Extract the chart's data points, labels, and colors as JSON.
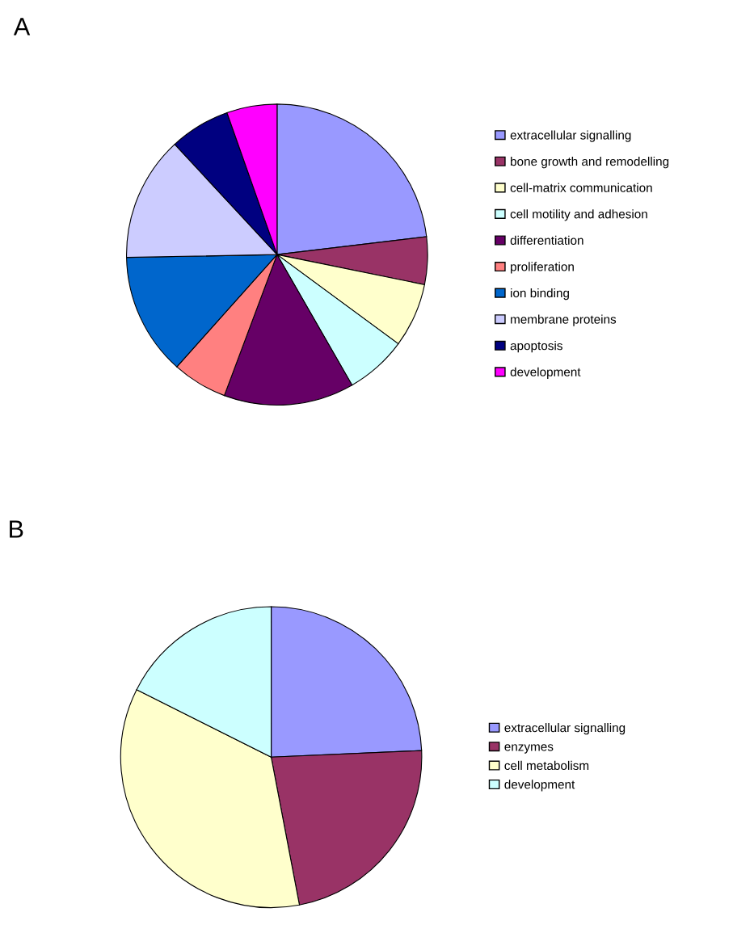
{
  "chart_data": [
    {
      "type": "pie",
      "title": "A",
      "categories": [
        "extracellular signalling",
        "bone growth and remodelling",
        "cell-matrix communication",
        "cell motility and adhesion",
        "differentiation",
        "proliferation",
        "ion binding",
        "membrane proteins",
        "apoptosis",
        "development"
      ],
      "values": [
        23.1,
        5.1,
        6.9,
        6.6,
        14.0,
        5.9,
        13.1,
        13.4,
        6.5,
        5.4
      ],
      "colors": [
        "#9999ff",
        "#993366",
        "#ffffcc",
        "#ccffff",
        "#660066",
        "#ff8080",
        "#0066cc",
        "#ccccff",
        "#000080",
        "#ff00ff"
      ],
      "legend": "right"
    },
    {
      "type": "pie",
      "title": "B",
      "categories": [
        "extracellular signalling",
        "enzymes",
        "cell metabolism",
        "development"
      ],
      "values": [
        24.3,
        22.7,
        35.4,
        17.6
      ],
      "colors": [
        "#9999ff",
        "#993366",
        "#ffffcc",
        "#ccffff"
      ],
      "legend": "right"
    }
  ]
}
